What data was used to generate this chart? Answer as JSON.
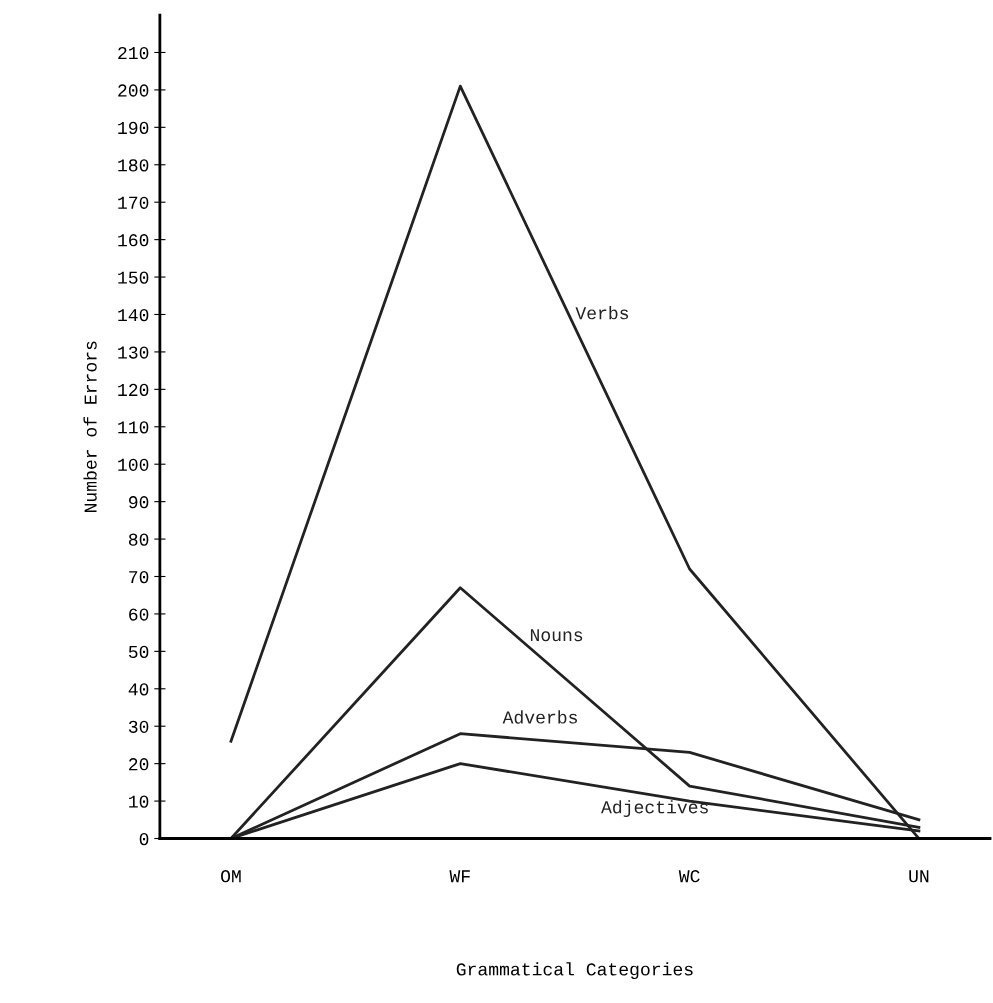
{
  "chart_data": {
    "type": "line",
    "xlabel": "Grammatical Categories",
    "ylabel": "Number of Errors",
    "categories": [
      "OM",
      "WF",
      "WC",
      "UN"
    ],
    "series": [
      {
        "name": "Verbs",
        "color": "#222222",
        "values": [
          26,
          201,
          72,
          0
        ]
      },
      {
        "name": "Nouns",
        "color": "#222222",
        "values": [
          0,
          67,
          14,
          3
        ]
      },
      {
        "name": "Adverbs",
        "color": "#222222",
        "values": [
          0,
          28,
          23,
          5
        ]
      },
      {
        "name": "Adjectives",
        "color": "#222222",
        "values": [
          0,
          20,
          10,
          2
        ]
      }
    ],
    "ylim": [
      0,
      220
    ],
    "yticks": [
      0,
      10,
      20,
      30,
      40,
      50,
      60,
      70,
      80,
      90,
      100,
      110,
      120,
      130,
      140,
      150,
      160,
      170,
      180,
      190,
      200,
      210
    ],
    "grid": false,
    "legend": false,
    "marker": "none",
    "line_style": "solid"
  }
}
